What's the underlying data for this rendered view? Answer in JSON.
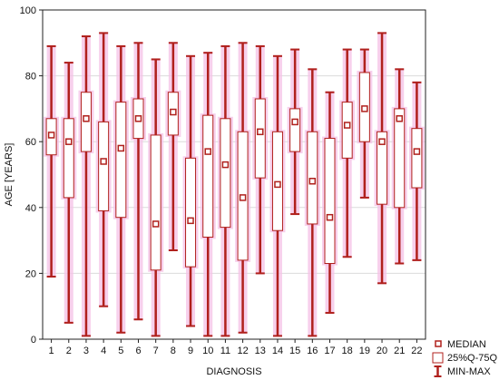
{
  "chart_data": {
    "type": "boxplot",
    "title": "",
    "xlabel": "DIAGNOSIS",
    "ylabel": "AGE [YEARS]",
    "ylim": [
      0,
      100
    ],
    "yticks": [
      0,
      20,
      40,
      60,
      80,
      100
    ],
    "grid": true,
    "legend_position": "bottom-right",
    "colors": {
      "whisker": "#b0201c",
      "box_fill": "#ffffff",
      "box_edge": "#b0201c",
      "halo": "#f4c0e6",
      "grid": "#dcdcdc"
    },
    "categories": [
      "1",
      "2",
      "3",
      "4",
      "5",
      "6",
      "7",
      "8",
      "9",
      "10",
      "11",
      "12",
      "13",
      "14",
      "15",
      "16",
      "17",
      "18",
      "19",
      "20",
      "21",
      "22"
    ],
    "boxes": [
      {
        "min": 19,
        "q1": 56,
        "median": 62,
        "q3": 67,
        "max": 89
      },
      {
        "min": 5,
        "q1": 43,
        "median": 60,
        "q3": 67,
        "max": 84
      },
      {
        "min": 1,
        "q1": 57,
        "median": 67,
        "q3": 75,
        "max": 92
      },
      {
        "min": 10,
        "q1": 39,
        "median": 54,
        "q3": 66,
        "max": 93
      },
      {
        "min": 2,
        "q1": 37,
        "median": 58,
        "q3": 72,
        "max": 89
      },
      {
        "min": 6,
        "q1": 61,
        "median": 67,
        "q3": 73,
        "max": 90
      },
      {
        "min": 1,
        "q1": 21,
        "median": 35,
        "q3": 62,
        "max": 85
      },
      {
        "min": 27,
        "q1": 62,
        "median": 69,
        "q3": 75,
        "max": 90
      },
      {
        "min": 4,
        "q1": 22,
        "median": 36,
        "q3": 55,
        "max": 86
      },
      {
        "min": 1,
        "q1": 31,
        "median": 57,
        "q3": 68,
        "max": 87
      },
      {
        "min": 1,
        "q1": 34,
        "median": 53,
        "q3": 67,
        "max": 89
      },
      {
        "min": 2,
        "q1": 24,
        "median": 43,
        "q3": 63,
        "max": 90
      },
      {
        "min": 20,
        "q1": 49,
        "median": 63,
        "q3": 73,
        "max": 89
      },
      {
        "min": 1,
        "q1": 33,
        "median": 47,
        "q3": 63,
        "max": 86
      },
      {
        "min": 38,
        "q1": 57,
        "median": 66,
        "q3": 70,
        "max": 88
      },
      {
        "min": 1,
        "q1": 35,
        "median": 48,
        "q3": 63,
        "max": 82
      },
      {
        "min": 8,
        "q1": 23,
        "median": 37,
        "q3": 61,
        "max": 75
      },
      {
        "min": 25,
        "q1": 55,
        "median": 65,
        "q3": 72,
        "max": 88
      },
      {
        "min": 43,
        "q1": 60,
        "median": 70,
        "q3": 81,
        "max": 88
      },
      {
        "min": 17,
        "q1": 41,
        "median": 60,
        "q3": 63,
        "max": 93
      },
      {
        "min": 23,
        "q1": 40,
        "median": 67,
        "q3": 70,
        "max": 82
      },
      {
        "min": 24,
        "q1": 46,
        "median": 57,
        "q3": 64,
        "max": 78
      }
    ],
    "legend": {
      "median": "MEDIAN",
      "box": "25%Q-75Q",
      "whisker": "MIN-MAX"
    }
  }
}
